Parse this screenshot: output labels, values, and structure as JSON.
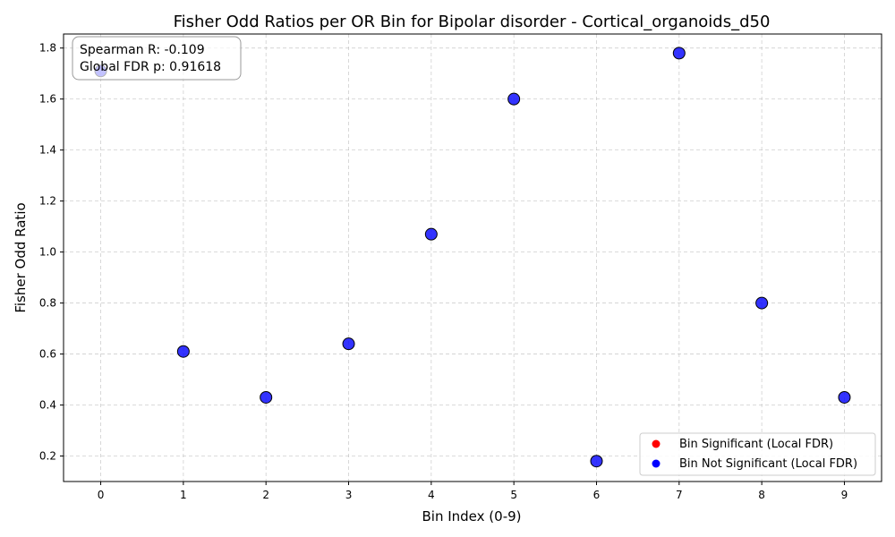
{
  "chart_data": {
    "type": "scatter",
    "title": "Fisher Odd Ratios per OR Bin for Bipolar disorder - Cortical_organoids_d50",
    "xlabel": "Bin Index (0-9)",
    "ylabel": "Fisher Odd Ratio",
    "xlim": [
      -0.45,
      9.45
    ],
    "ylim": [
      0.1,
      1.855
    ],
    "xticks": [
      0,
      1,
      2,
      3,
      4,
      5,
      6,
      7,
      8,
      9
    ],
    "yticks": [
      0.2,
      0.4,
      0.6,
      0.8,
      1.0,
      1.2,
      1.4,
      1.6,
      1.8
    ],
    "ytick_labels": [
      "0.2",
      "0.4",
      "0.6",
      "0.8",
      "1.0",
      "1.2",
      "1.4",
      "1.6",
      "1.8"
    ],
    "grid": true,
    "legend_position": "bottom-right",
    "series": [
      {
        "name": "Bin Significant (Local FDR)",
        "color": "#ff0000",
        "x": [],
        "y": []
      },
      {
        "name": "Bin Not Significant (Local FDR)",
        "color": "#0000ff",
        "x": [
          0,
          1,
          2,
          3,
          4,
          5,
          6,
          7,
          8,
          9
        ],
        "y": [
          1.71,
          0.61,
          0.43,
          0.64,
          1.07,
          1.6,
          0.18,
          1.78,
          0.8,
          0.43
        ]
      }
    ],
    "annotation": {
      "line1": "Spearman R: -0.109",
      "line2": "Global FDR p: 0.91618",
      "position": "top-left"
    }
  }
}
